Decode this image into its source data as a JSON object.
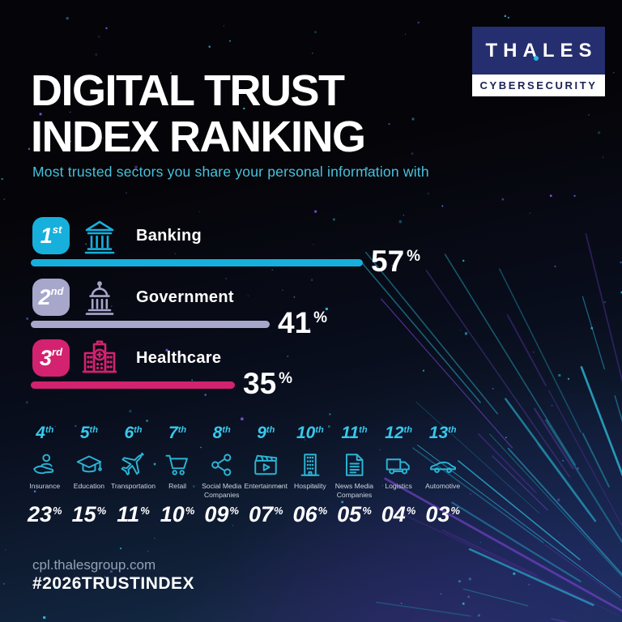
{
  "header": {
    "title_line1": "DIGITAL TRUST",
    "title_line2": "INDEX RANKING",
    "subtitle": "Most trusted sectors you share your personal information with"
  },
  "logo": {
    "brand": "THALES",
    "division": "CYBERSECURITY"
  },
  "footer": {
    "website": "cpl.thalesgroup.com",
    "hashtag": "#2026TRUSTINDEX"
  },
  "misc": {
    "percent_sign": "%"
  },
  "colors": {
    "cyan": "#17b0dc",
    "lavender": "#a7a6cb",
    "magenta": "#d3226f",
    "rank_cyan": "#38c8ec",
    "icon_cyan": "#2cb4d4",
    "subtitle_cyan": "#46c3dc",
    "logo_blue": "#252e6e",
    "logo_text_blue": "#1b2356"
  },
  "chart_data": {
    "type": "bar",
    "title": "Digital Trust Index Ranking",
    "subtitle": "Most trusted sectors you share your personal information with",
    "unit": "%",
    "categories": [
      "Banking",
      "Government",
      "Healthcare",
      "Insurance",
      "Education",
      "Transportation",
      "Retail",
      "Social Media Companies",
      "Entertainment",
      "Hospitality",
      "News Media Companies",
      "Logistics",
      "Automotive"
    ],
    "values": [
      57,
      41,
      35,
      23,
      15,
      11,
      10,
      9,
      7,
      6,
      5,
      4,
      3
    ],
    "ranks": [
      "1st",
      "2nd",
      "3rd",
      "4th",
      "5th",
      "6th",
      "7th",
      "8th",
      "9th",
      "10th",
      "11th",
      "12th",
      "13th"
    ],
    "legend_position": "none",
    "grid": false
  },
  "top3": [
    {
      "rank": "1",
      "suffix": "st",
      "label": "Banking",
      "value": "57",
      "value_num": 57,
      "color": "#17b0dc"
    },
    {
      "rank": "2",
      "suffix": "nd",
      "label": "Government",
      "value": "41",
      "value_num": 41,
      "color": "#a7a6cb"
    },
    {
      "rank": "3",
      "suffix": "rd",
      "label": "Healthcare",
      "value": "35",
      "value_num": 35,
      "color": "#d3226f"
    }
  ],
  "sectors": [
    {
      "rank": "4",
      "suffix": "th",
      "label": "Insurance",
      "value": "23"
    },
    {
      "rank": "5",
      "suffix": "th",
      "label": "Education",
      "value": "15"
    },
    {
      "rank": "6",
      "suffix": "th",
      "label": "Transportation",
      "value": "11"
    },
    {
      "rank": "7",
      "suffix": "th",
      "label": "Retail",
      "value": "10"
    },
    {
      "rank": "8",
      "suffix": "th",
      "label": "Social Media Companies",
      "value": "09"
    },
    {
      "rank": "9",
      "suffix": "th",
      "label": "Entertainment",
      "value": "07"
    },
    {
      "rank": "10",
      "suffix": "th",
      "label": "Hospitality",
      "value": "06"
    },
    {
      "rank": "11",
      "suffix": "th",
      "label": "News Media Companies",
      "value": "05"
    },
    {
      "rank": "12",
      "suffix": "th",
      "label": "Logistics",
      "value": "04"
    },
    {
      "rank": "13",
      "suffix": "th",
      "label": "Automotive",
      "value": "03"
    }
  ]
}
